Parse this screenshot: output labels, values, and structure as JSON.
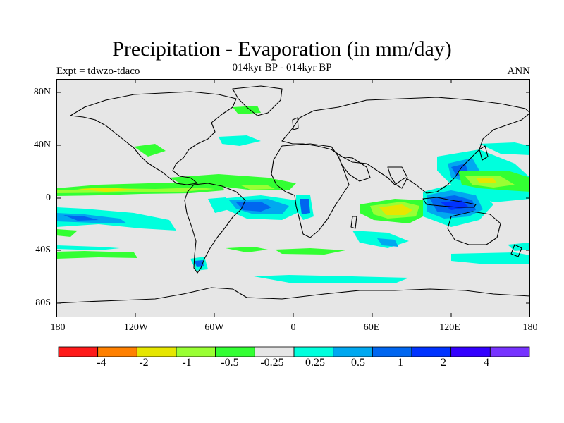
{
  "header": {
    "title": "Precipitation - Evaporation (in mm/day)",
    "subtitle": "014kyr BP - 014kyr BP",
    "left_label": "Expt = tdwzo-tdaco",
    "right_label": "ANN"
  },
  "map": {
    "ocean_background": "#e6e6e6",
    "coastline_color": "#000000",
    "lat_ticks": [
      "80N",
      "40N",
      "0",
      "40S",
      "80S"
    ],
    "lon_ticks": [
      "180",
      "120W",
      "60W",
      "0",
      "60E",
      "120E",
      "180"
    ]
  },
  "colorbar": {
    "colors": [
      "#ff1a1a",
      "#ff8000",
      "#e6e600",
      "#99ff33",
      "#33ff33",
      "#e6e6e6",
      "#00ffdd",
      "#00a8f0",
      "#0066f0",
      "#0033ff",
      "#3300ff",
      "#7733ff"
    ],
    "labels": [
      "-4",
      "-2",
      "-1",
      "-0.5",
      "-0.25",
      "0.25",
      "0.5",
      "1",
      "2",
      "4"
    ]
  }
}
